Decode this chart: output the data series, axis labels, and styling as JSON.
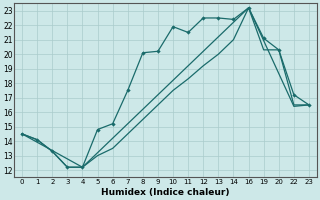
{
  "xlabel": "Humidex (Indice chaleur)",
  "background_color": "#cde8e8",
  "grid_color": "#aacccc",
  "line_color": "#1a6b6b",
  "ylim": [
    11.5,
    23.5
  ],
  "yticks": [
    12,
    13,
    14,
    15,
    16,
    17,
    18,
    19,
    20,
    21,
    22,
    23
  ],
  "xtick_labels": [
    "0",
    "1",
    "2",
    "3",
    "4",
    "5",
    "6",
    "7",
    "8",
    "9",
    "10",
    "11",
    "12",
    "13",
    "14",
    "16",
    "19",
    "20",
    "22",
    "23"
  ],
  "line1_x": [
    0,
    1,
    2,
    3,
    4,
    5,
    6,
    7,
    8,
    9,
    10,
    11,
    12,
    13,
    14,
    15,
    16,
    17,
    18,
    19
  ],
  "line1_y": [
    14.5,
    14.1,
    13.3,
    12.2,
    12.2,
    14.8,
    15.2,
    17.5,
    20.1,
    20.2,
    21.9,
    21.5,
    22.5,
    22.5,
    22.4,
    23.2,
    21.1,
    20.3,
    17.2,
    16.5
  ],
  "line2_x": [
    0,
    1,
    2,
    3,
    4,
    5,
    6,
    7,
    8,
    9,
    10,
    11,
    12,
    13,
    14,
    15,
    16,
    17,
    18,
    19
  ],
  "line2_y": [
    14.5,
    14.1,
    13.3,
    12.2,
    12.2,
    13.0,
    13.5,
    14.5,
    15.5,
    16.5,
    17.5,
    18.3,
    19.2,
    20.0,
    21.0,
    23.2,
    20.3,
    20.3,
    16.5,
    16.5
  ],
  "line3_x": [
    0,
    4,
    15,
    18,
    19
  ],
  "line3_y": [
    14.5,
    12.2,
    23.2,
    16.4,
    16.5
  ]
}
